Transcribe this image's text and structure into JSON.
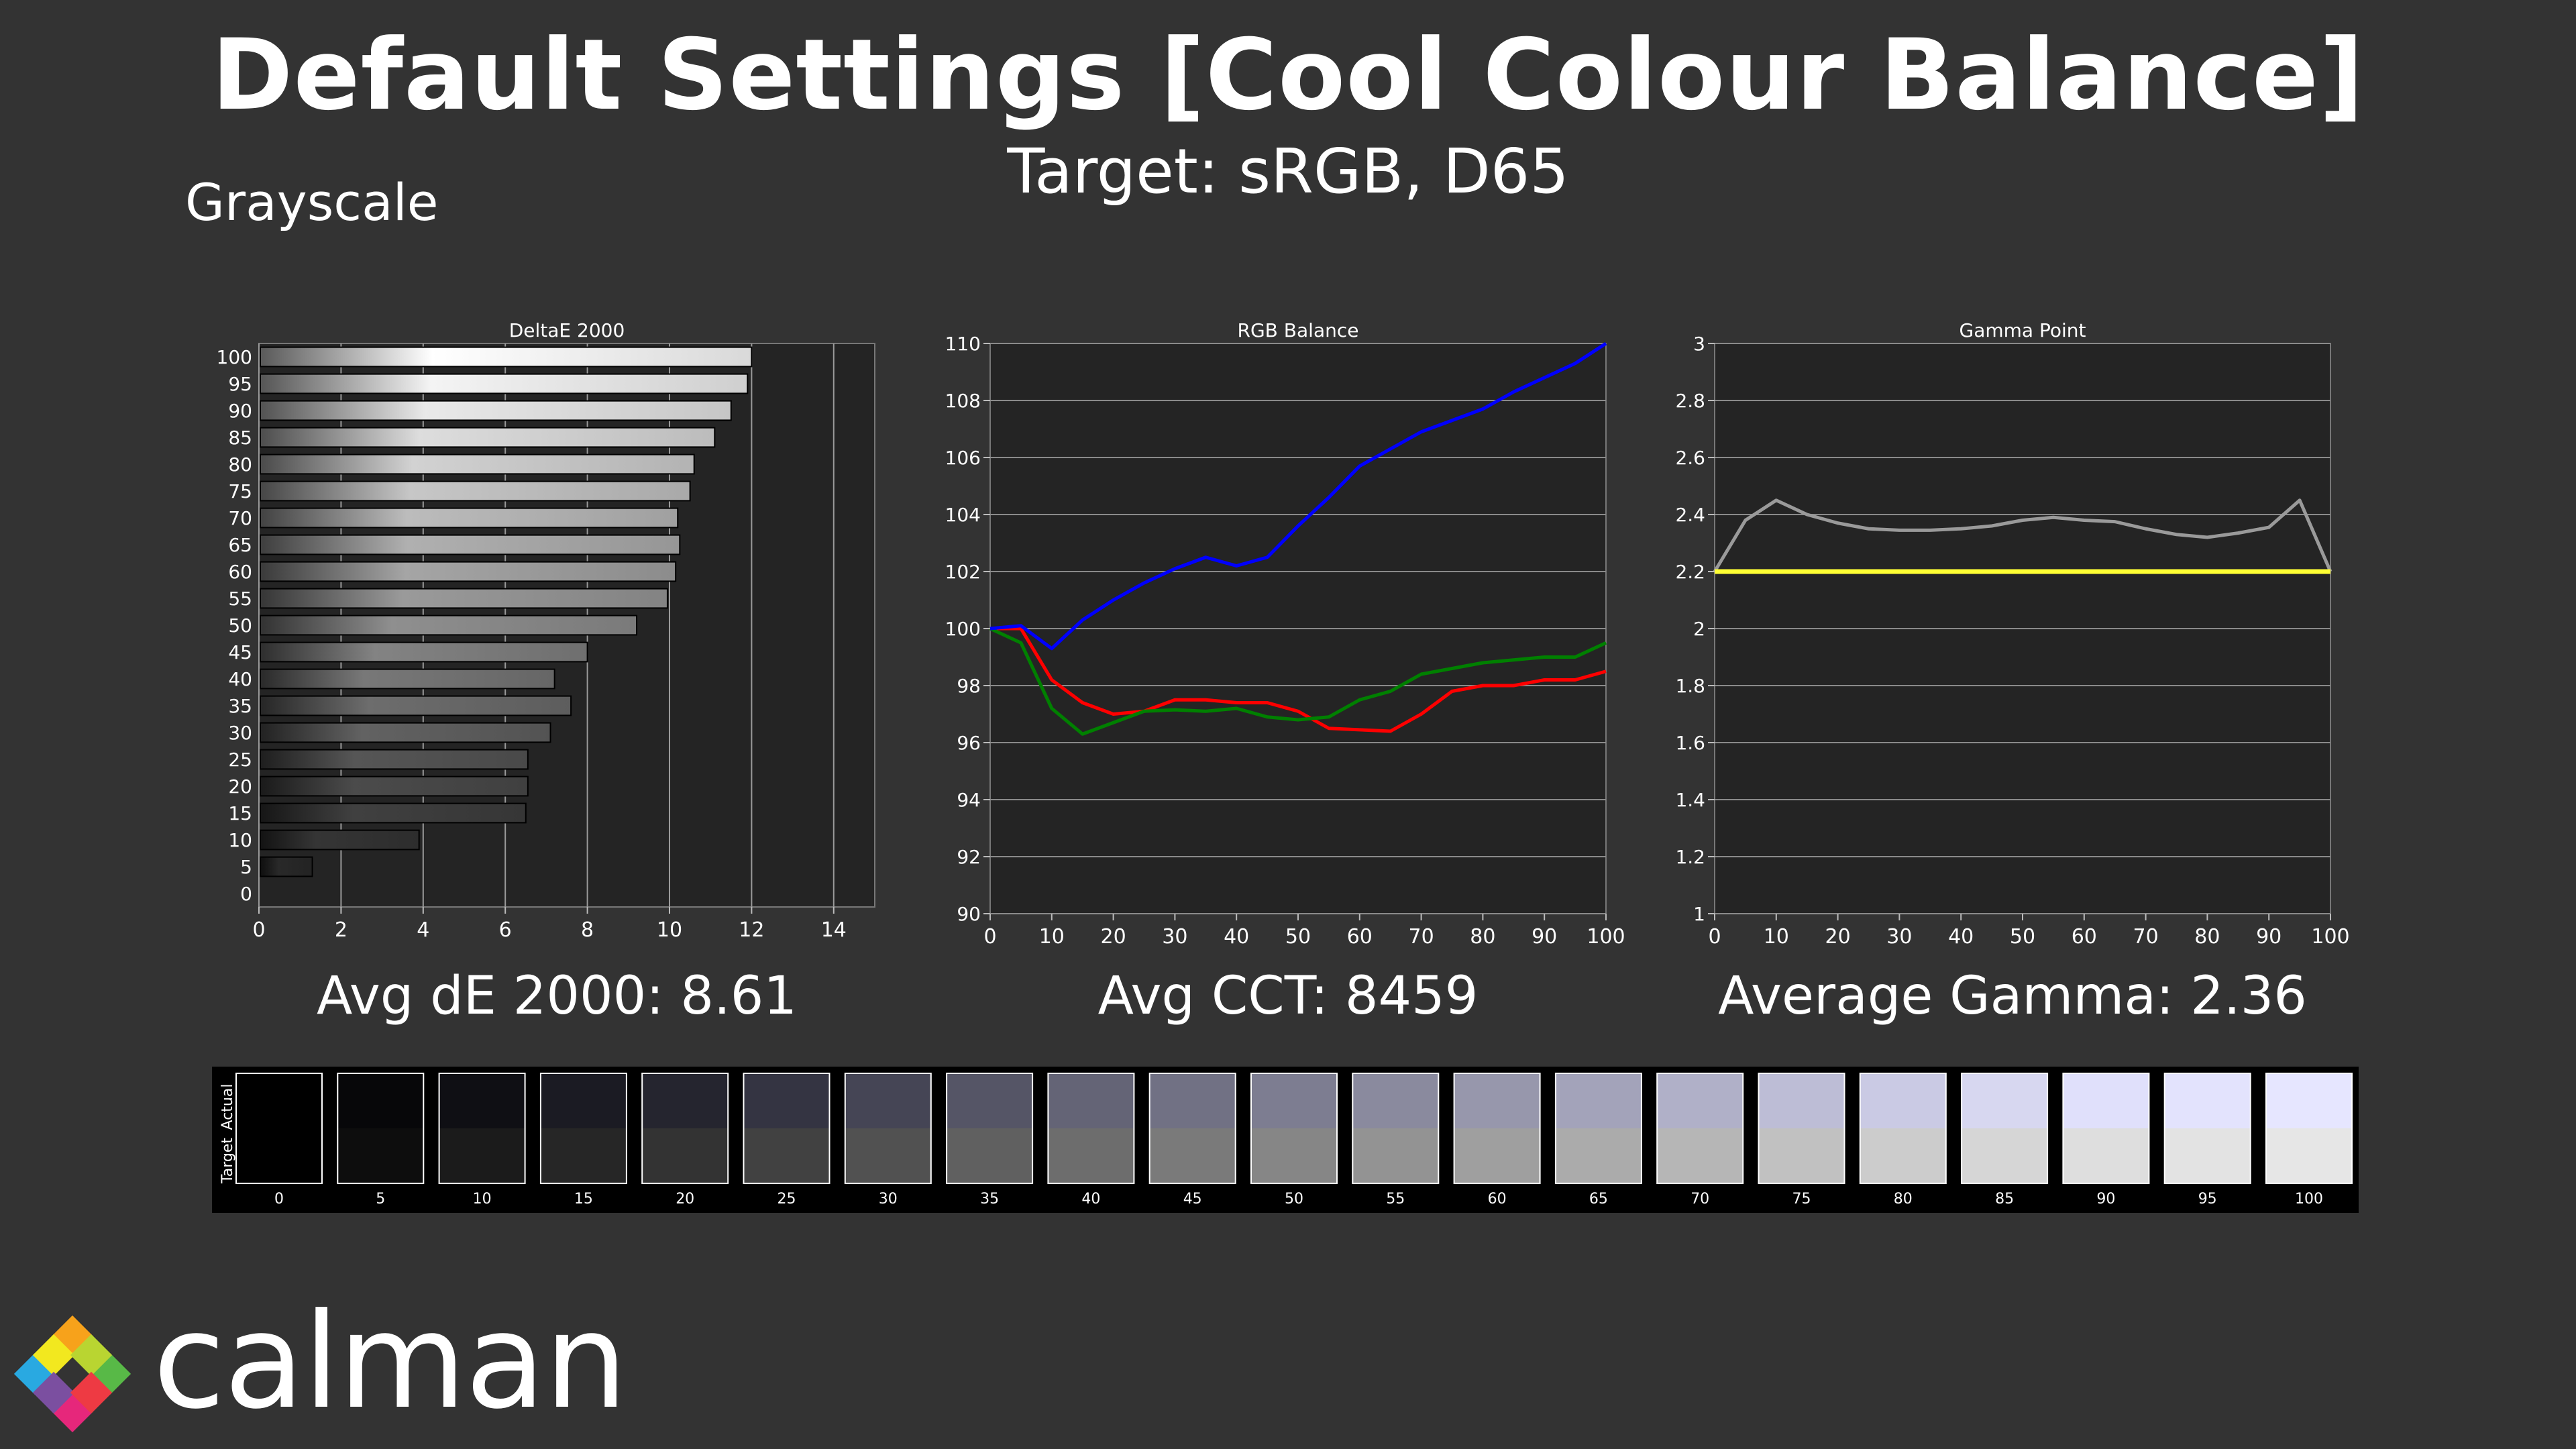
{
  "header": {
    "title": "Default Settings [Cool Colour Balance]",
    "subtitle": "Target: sRGB, D65",
    "section": "Grayscale"
  },
  "summary": {
    "avg_de": "Avg dE 2000: 8.61",
    "avg_cct": "Avg CCT: 8459",
    "avg_gamma": "Average Gamma: 2.36"
  },
  "swatches": {
    "actual_label": "Actual",
    "target_label": "Target",
    "levels": [
      "0",
      "5",
      "10",
      "15",
      "20",
      "25",
      "30",
      "35",
      "40",
      "45",
      "50",
      "55",
      "60",
      "65",
      "70",
      "75",
      "80",
      "85",
      "90",
      "95",
      "100"
    ],
    "actual_colors": [
      "#000000",
      "#070709",
      "#0f0f14",
      "#1b1b23",
      "#25252f",
      "#343442",
      "#454555",
      "#555566",
      "#646476",
      "#717184",
      "#7d7d91",
      "#8a8a9e",
      "#9797ac",
      "#a3a3ba",
      "#b0b0c8",
      "#bdbdd6",
      "#cacae4",
      "#d7d7f0",
      "#e0e0fb",
      "#e3e3fd",
      "#e6e6ff"
    ],
    "target_colors": [
      "#000000",
      "#0d0d0d",
      "#1b1b1b",
      "#262626",
      "#333333",
      "#414141",
      "#515151",
      "#606060",
      "#6d6d6d",
      "#7a7a7a",
      "#868686",
      "#939393",
      "#9f9f9f",
      "#ababab",
      "#b6b6b6",
      "#c1c1c1",
      "#cccccc",
      "#d6d6d6",
      "#dedede",
      "#e3e3e3",
      "#e6e6e6"
    ]
  },
  "brand": {
    "name": "calman"
  },
  "chart_data": [
    {
      "type": "bar",
      "orientation": "horizontal",
      "title": "DeltaE 2000",
      "categories": [
        "0",
        "5",
        "10",
        "15",
        "20",
        "25",
        "30",
        "35",
        "40",
        "45",
        "50",
        "55",
        "60",
        "65",
        "70",
        "75",
        "80",
        "85",
        "90",
        "95",
        "100"
      ],
      "values": [
        0,
        1.3,
        3.9,
        6.5,
        6.55,
        6.55,
        7.1,
        7.6,
        7.2,
        8.0,
        9.2,
        9.95,
        10.15,
        10.25,
        10.2,
        10.5,
        10.6,
        11.1,
        11.5,
        11.9,
        12.0
      ],
      "xlim": [
        0,
        15
      ],
      "xticks": [
        "0",
        "2",
        "4",
        "6",
        "8",
        "10",
        "12",
        "14"
      ],
      "grid": true
    },
    {
      "type": "line",
      "title": "RGB Balance",
      "x": [
        0,
        5,
        10,
        15,
        20,
        25,
        30,
        35,
        40,
        45,
        50,
        55,
        60,
        65,
        70,
        75,
        80,
        85,
        90,
        95,
        100
      ],
      "series": [
        {
          "color": "#ff0000",
          "values": [
            100.0,
            100.0,
            98.2,
            97.4,
            97.0,
            97.1,
            97.5,
            97.5,
            97.4,
            97.4,
            97.1,
            96.5,
            96.45,
            96.4,
            97.0,
            97.8,
            98.0,
            98.0,
            98.2,
            98.2,
            98.5
          ]
        },
        {
          "color": "#008000",
          "values": [
            100.0,
            99.5,
            97.2,
            96.3,
            96.7,
            97.1,
            97.15,
            97.1,
            97.2,
            96.9,
            96.8,
            96.9,
            97.5,
            97.8,
            98.4,
            98.6,
            98.8,
            98.9,
            99.0,
            99.0,
            99.5
          ]
        },
        {
          "color": "#0000ff",
          "values": [
            100.0,
            100.1,
            99.3,
            100.3,
            101.0,
            101.6,
            102.1,
            102.5,
            102.2,
            102.5,
            103.6,
            104.6,
            105.7,
            106.3,
            106.9,
            107.3,
            107.7,
            108.3,
            108.8,
            109.3,
            110.0
          ]
        }
      ],
      "xlim": [
        0,
        100
      ],
      "ylim": [
        90,
        110
      ],
      "xticks": [
        "0",
        "10",
        "20",
        "30",
        "40",
        "50",
        "60",
        "70",
        "80",
        "90",
        "100"
      ],
      "yticks": [
        "90",
        "92",
        "94",
        "96",
        "98",
        "100",
        "102",
        "104",
        "106",
        "108",
        "110"
      ],
      "grid": true
    },
    {
      "type": "line",
      "title": "Gamma Point",
      "x": [
        0,
        5,
        10,
        15,
        20,
        25,
        30,
        35,
        40,
        45,
        50,
        55,
        60,
        65,
        70,
        75,
        80,
        85,
        90,
        95,
        100
      ],
      "series": [
        {
          "color": "#9a9a9a",
          "values": [
            2.2,
            2.38,
            2.45,
            2.4,
            2.37,
            2.35,
            2.345,
            2.345,
            2.35,
            2.36,
            2.38,
            2.39,
            2.38,
            2.375,
            2.35,
            2.33,
            2.32,
            2.335,
            2.355,
            2.45,
            2.2
          ]
        },
        {
          "color": "#ffff33",
          "values": [
            2.2,
            2.2,
            2.2,
            2.2,
            2.2,
            2.2,
            2.2,
            2.2,
            2.2,
            2.2,
            2.2,
            2.2,
            2.2,
            2.2,
            2.2,
            2.2,
            2.2,
            2.2,
            2.2,
            2.2,
            2.2
          ]
        }
      ],
      "xlim": [
        0,
        100
      ],
      "ylim": [
        1,
        3
      ],
      "xticks": [
        "0",
        "10",
        "20",
        "30",
        "40",
        "50",
        "60",
        "70",
        "80",
        "90",
        "100"
      ],
      "yticks": [
        "1",
        "1.2",
        "1.4",
        "1.6",
        "1.8",
        "2",
        "2.2",
        "2.4",
        "2.6",
        "2.8",
        "3"
      ],
      "grid": true
    }
  ]
}
